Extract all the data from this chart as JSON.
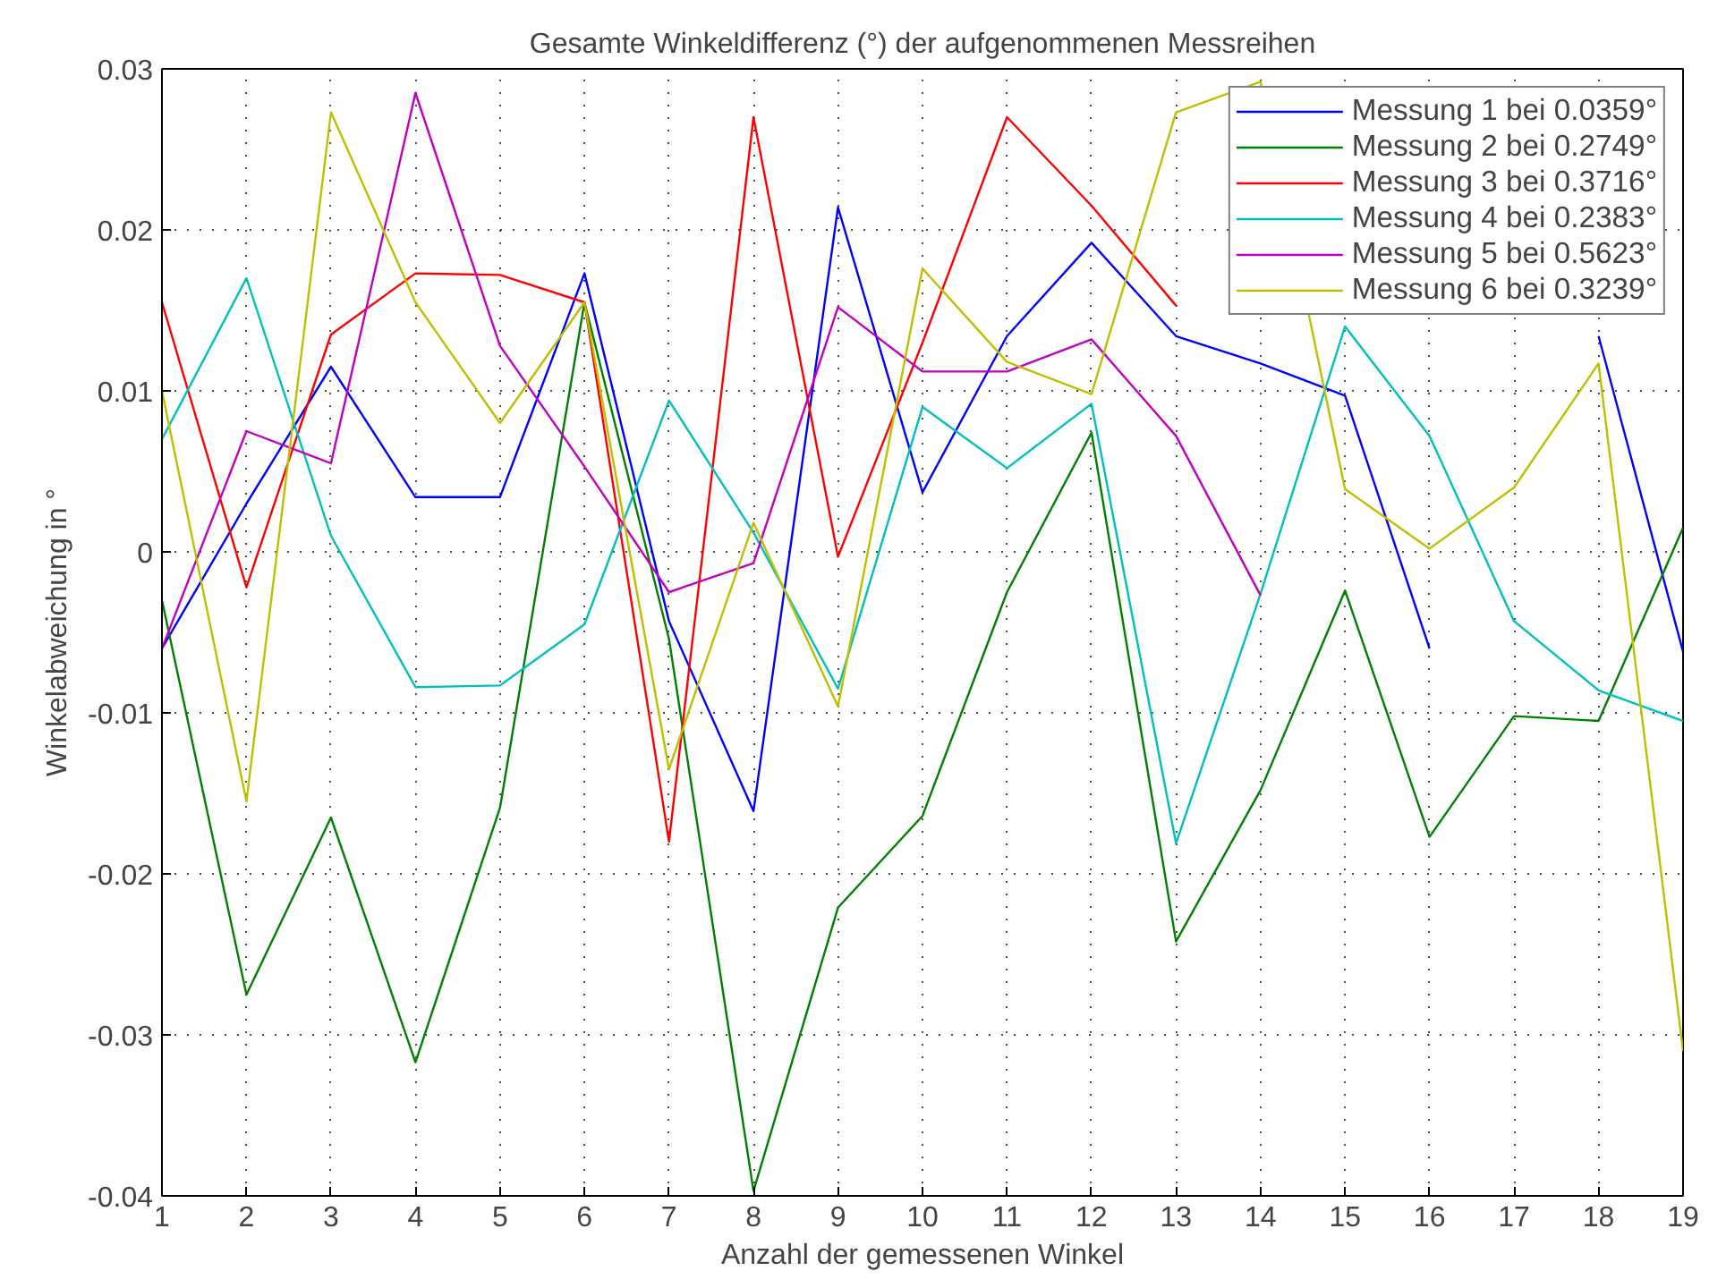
{
  "chart_data": {
    "type": "line",
    "title": "Gesamte Winkeldifferenz (°) der aufgenommenen Messreihen",
    "xlabel": "Anzahl der gemessenen Winkel",
    "ylabel": "Winkelabweichung in °",
    "x": [
      1,
      2,
      3,
      4,
      5,
      6,
      7,
      8,
      9,
      10,
      11,
      12,
      13,
      14,
      15,
      16,
      17,
      18,
      19
    ],
    "xlim": [
      1,
      19
    ],
    "xticks": [
      1,
      2,
      3,
      4,
      5,
      6,
      7,
      8,
      9,
      10,
      11,
      12,
      13,
      14,
      15,
      16,
      17,
      18,
      19
    ],
    "ylim": [
      -0.04,
      0.03
    ],
    "yticks": [
      -0.04,
      -0.03,
      -0.02,
      -0.01,
      0,
      0.01,
      0.02,
      0.03
    ],
    "grid": true,
    "legend": "top right",
    "marker": "none",
    "line_style": "solid",
    "series": [
      {
        "name": "Messung 1 bei 0.0359°",
        "color": "#0000ff",
        "values": [
          -0.006,
          0.003,
          0.0115,
          0.0034,
          0.0034,
          0.0173,
          -0.0043,
          -0.0161,
          0.0214,
          0.0037,
          0.0134,
          0.0192,
          0.0134,
          0.0117,
          0.0097,
          -0.006,
          null,
          0.0134,
          -0.0062
        ]
      },
      {
        "name": "Messung 2 bei 0.2749°",
        "color": "#008000",
        "values": [
          -0.003,
          -0.0275,
          -0.0165,
          -0.0317,
          -0.0159,
          0.0155,
          -0.0054,
          -0.0397,
          -0.0221,
          -0.0164,
          -0.0025,
          0.0074,
          -0.0242,
          -0.0148,
          -0.0024,
          -0.0177,
          -0.0102,
          -0.0105,
          0.0015
        ]
      },
      {
        "name": "Messung 3 bei 0.3716°",
        "color": "#ff0000",
        "values": [
          0.0155,
          -0.0022,
          0.0135,
          0.0173,
          0.0172,
          0.0155,
          -0.018,
          0.027,
          -0.0003,
          0.013,
          0.027,
          0.0215,
          0.0153,
          null,
          null,
          null,
          null,
          null,
          null
        ]
      },
      {
        "name": "Messung 4 bei 0.2383°",
        "color": "#00bfbf",
        "values": [
          0.007,
          0.017,
          0.001,
          -0.0084,
          -0.0083,
          -0.0045,
          0.0094,
          0.0012,
          -0.0085,
          0.009,
          0.0052,
          0.0092,
          -0.0181,
          -0.0026,
          0.014,
          0.0072,
          -0.0043,
          -0.0086,
          -0.0105
        ]
      },
      {
        "name": "Messung 5 bei 0.5623°",
        "color": "#bf00bf",
        "values": [
          -0.006,
          0.0075,
          0.0055,
          0.0285,
          0.0128,
          0.0053,
          -0.0025,
          -0.0007,
          0.0152,
          0.0112,
          0.0112,
          0.0132,
          0.0072,
          -0.0027,
          null,
          null,
          null,
          null,
          null
        ]
      },
      {
        "name": "Messung 6 bei 0.3239°",
        "color": "#bfbf00",
        "values": [
          0.01,
          -0.0155,
          0.0273,
          0.0155,
          0.008,
          0.0155,
          -0.0135,
          0.0018,
          -0.0096,
          0.0176,
          0.0118,
          0.0098,
          0.0273,
          0.0292,
          0.0039,
          0.0002,
          0.004,
          0.0117,
          -0.031
        ]
      }
    ]
  }
}
